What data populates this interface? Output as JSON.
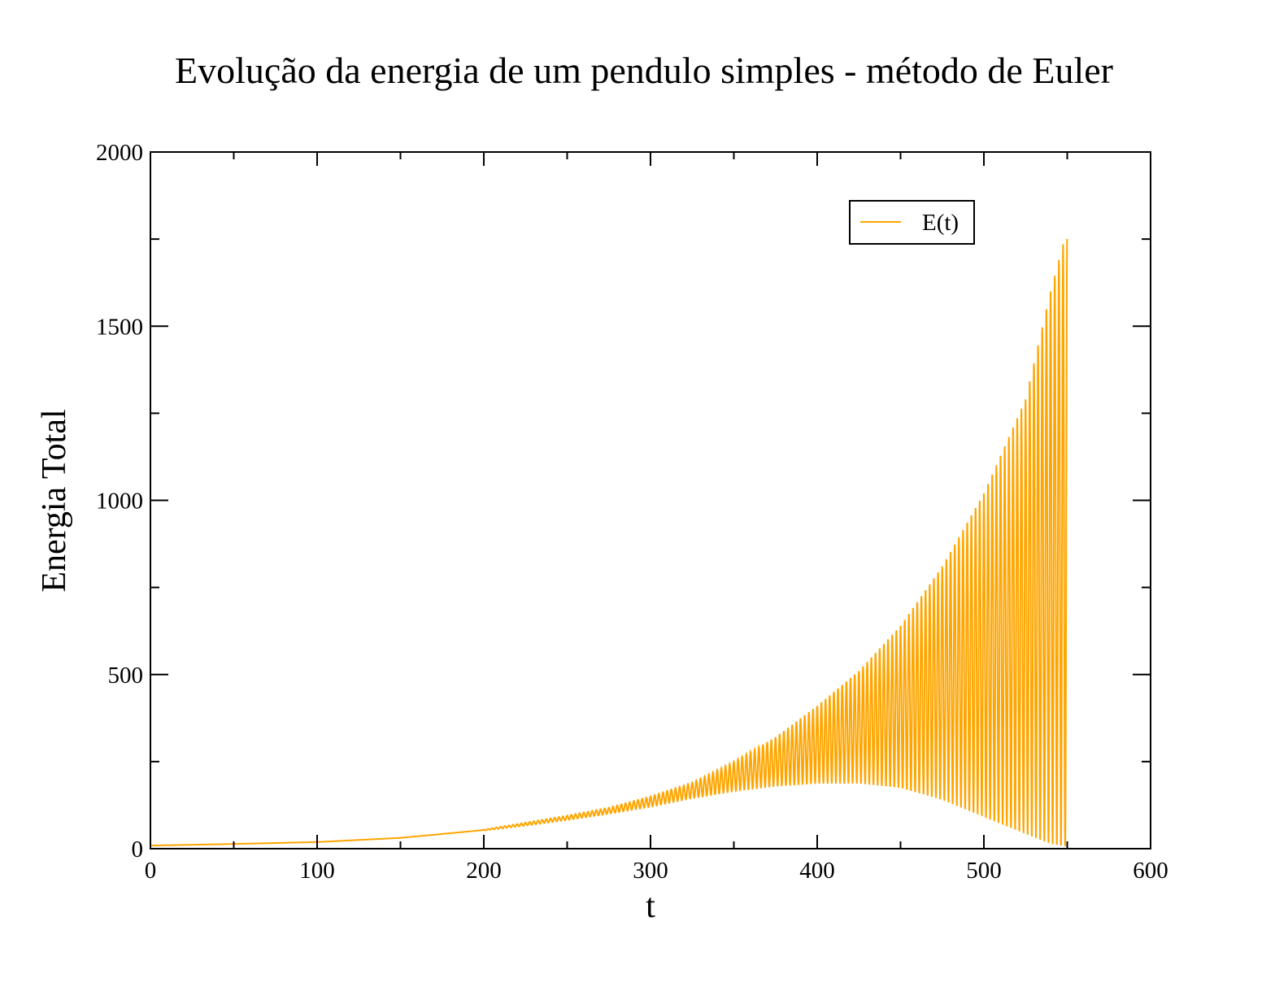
{
  "chart_data": {
    "type": "line",
    "title": "Evolução da energia de um pendulo simples - método de Euler",
    "xlabel": "t",
    "ylabel": "Energia Total",
    "xlim": [
      0,
      600
    ],
    "ylim": [
      0,
      2000
    ],
    "x_ticks": [
      0,
      100,
      200,
      300,
      400,
      500,
      600
    ],
    "y_ticks": [
      0,
      500,
      1000,
      1500,
      2000
    ],
    "x_tick_labels": [
      "0",
      "100",
      "200",
      "300",
      "400",
      "500",
      "600"
    ],
    "y_tick_labels": [
      "0",
      "500",
      "1000",
      "1500",
      "2000"
    ],
    "grid": false,
    "legend_position": "top-right",
    "series": [
      {
        "name": "E(t)",
        "color": "#FFA500",
        "style": "oscillating envelope",
        "upper_envelope": [
          [
            0,
            10
          ],
          [
            50,
            15
          ],
          [
            100,
            20
          ],
          [
            150,
            32
          ],
          [
            200,
            55
          ],
          [
            225,
            75
          ],
          [
            250,
            95
          ],
          [
            275,
            118
          ],
          [
            300,
            150
          ],
          [
            325,
            190
          ],
          [
            350,
            250
          ],
          [
            375,
            320
          ],
          [
            400,
            410
          ],
          [
            425,
            510
          ],
          [
            450,
            640
          ],
          [
            475,
            810
          ],
          [
            500,
            1020
          ],
          [
            525,
            1290
          ],
          [
            540,
            1600
          ],
          [
            550,
            1780
          ]
        ],
        "lower_envelope": [
          [
            0,
            8
          ],
          [
            50,
            12
          ],
          [
            100,
            18
          ],
          [
            150,
            30
          ],
          [
            200,
            52
          ],
          [
            225,
            66
          ],
          [
            250,
            82
          ],
          [
            275,
            100
          ],
          [
            300,
            120
          ],
          [
            325,
            145
          ],
          [
            350,
            165
          ],
          [
            375,
            180
          ],
          [
            400,
            188
          ],
          [
            425,
            188
          ],
          [
            450,
            175
          ],
          [
            475,
            140
          ],
          [
            500,
            90
          ],
          [
            525,
            40
          ],
          [
            540,
            10
          ],
          [
            550,
            2
          ]
        ],
        "oscillation_start_t": 200,
        "oscillation_period": 2.5,
        "end_t": 550
      }
    ]
  }
}
